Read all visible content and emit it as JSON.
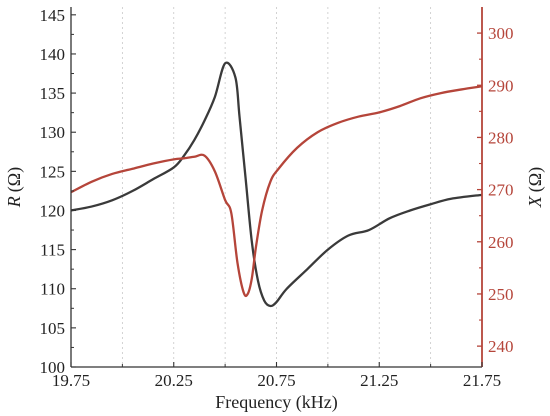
{
  "colors": {
    "r_series": "#3a3a3a",
    "x_series": "#b5453a",
    "axis_left": "#333333",
    "axis_right": "#b5453a",
    "grid": "#c8c8c8"
  },
  "chart_data": {
    "type": "line",
    "xlabel": "Frequency (kHz)",
    "xlim": [
      19.75,
      21.75
    ],
    "xticks": [
      "19.75",
      "20.25",
      "20.75",
      "21.25",
      "21.75"
    ],
    "xtick_values": [
      19.75,
      20.25,
      20.75,
      21.25,
      21.75
    ],
    "grid": "vertical dotted",
    "left_axis": {
      "label_var": "R",
      "label_unit": "(Ω)",
      "ylim": [
        100,
        146
      ],
      "ticks": [
        "100",
        "105",
        "110",
        "115",
        "120",
        "125",
        "130",
        "135",
        "140",
        "145"
      ],
      "tick_values": [
        100,
        105,
        110,
        115,
        120,
        125,
        130,
        135,
        140,
        145
      ]
    },
    "right_axis": {
      "label_var": "X",
      "label_unit": "(Ω)",
      "ylim": [
        236,
        305
      ],
      "ticks": [
        "240",
        "250",
        "260",
        "270",
        "280",
        "290",
        "300"
      ],
      "tick_values": [
        240,
        250,
        260,
        270,
        280,
        290,
        300
      ]
    },
    "series": [
      {
        "axis": "left",
        "x": [
          19.75,
          19.85,
          19.95,
          20.05,
          20.15,
          20.25,
          20.3,
          20.35,
          20.4,
          20.45,
          20.5,
          20.55,
          20.57,
          20.6,
          20.63,
          20.66,
          20.69,
          20.72,
          20.75,
          20.8,
          20.9,
          21.0,
          21.1,
          21.2,
          21.3,
          21.4,
          21.5,
          21.6,
          21.75
        ],
        "y": [
          120.0,
          120.5,
          121.3,
          122.5,
          124.0,
          125.5,
          127.0,
          129.0,
          131.5,
          134.5,
          138.8,
          137.0,
          132.0,
          124.0,
          116.0,
          111.0,
          108.5,
          107.8,
          108.3,
          110.0,
          112.5,
          115.0,
          116.8,
          117.5,
          119.0,
          120.0,
          120.8,
          121.5,
          122.0
        ]
      },
      {
        "axis": "right",
        "x": [
          19.75,
          19.85,
          19.95,
          20.05,
          20.15,
          20.25,
          20.3,
          20.35,
          20.4,
          20.45,
          20.5,
          20.53,
          20.56,
          20.59,
          20.61,
          20.63,
          20.65,
          20.68,
          20.72,
          20.76,
          20.85,
          20.95,
          21.05,
          21.15,
          21.25,
          21.35,
          21.45,
          21.55,
          21.65,
          21.75
        ],
        "y": [
          269.5,
          271.5,
          273.0,
          274.0,
          275.0,
          275.8,
          276.0,
          276.3,
          276.5,
          273.5,
          268.0,
          265.5,
          256.0,
          250.3,
          250.0,
          253.0,
          259.0,
          266.0,
          271.5,
          274.0,
          278.0,
          281.0,
          282.8,
          284.0,
          284.8,
          286.0,
          287.5,
          288.5,
          289.2,
          289.8
        ]
      }
    ]
  }
}
